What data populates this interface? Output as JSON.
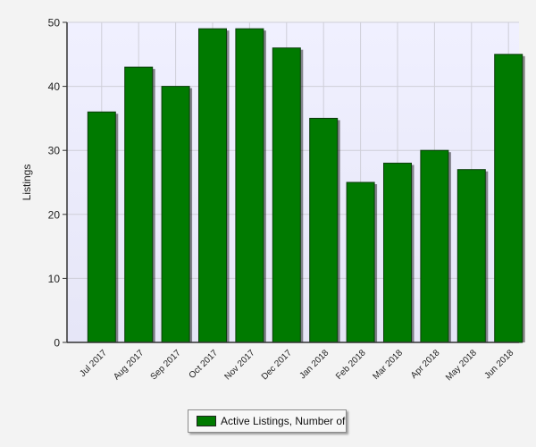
{
  "chart_data": {
    "type": "bar",
    "title": "",
    "xlabel": "",
    "ylabel": "Listings",
    "ylim": [
      0,
      50
    ],
    "yticks": [
      0,
      10,
      20,
      30,
      40,
      50
    ],
    "grid": true,
    "legend_position": "bottom",
    "categories": [
      "Jul 2017",
      "Aug 2017",
      "Sep 2017",
      "Oct 2017",
      "Nov 2017",
      "Dec 2017",
      "Jan 2018",
      "Feb 2018",
      "Mar 2018",
      "Apr 2018",
      "May 2018",
      "Jun 2018"
    ],
    "series": [
      {
        "name": "Active Listings, Number of",
        "color": "#007a00",
        "values": [
          36,
          43,
          40,
          49,
          49,
          46,
          35,
          25,
          28,
          30,
          27,
          45
        ]
      }
    ]
  },
  "colors": {
    "plot_background_top": "#f0f0ff",
    "plot_background_bottom": "#e6e6f7",
    "grid": "#cfcfd8",
    "bar": "#007a00"
  }
}
